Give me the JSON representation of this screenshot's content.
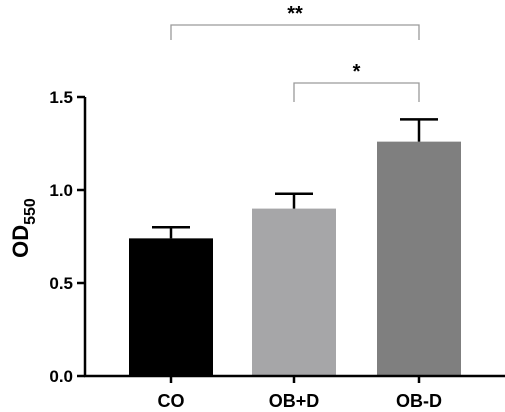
{
  "chart_data": {
    "type": "bar",
    "title": "",
    "xlabel": "",
    "ylabel": "OD",
    "ylabel_subscript": "550",
    "ylim": [
      0,
      1.5
    ],
    "yticks": [
      0.0,
      0.5,
      1.0,
      1.5
    ],
    "ytick_labels": [
      "0.0",
      "0.5",
      "1.0",
      "1.5"
    ],
    "categories": [
      "CO",
      "OB+D",
      "OB-D"
    ],
    "values": [
      0.74,
      0.9,
      1.26
    ],
    "errors": [
      0.06,
      0.08,
      0.12
    ],
    "bar_colors": [
      "#000000",
      "#a6a6a8",
      "#7f7f7f"
    ],
    "grid": false,
    "significance": [
      {
        "from": 0,
        "to": 2,
        "label": "**"
      },
      {
        "from": 1,
        "to": 2,
        "label": "*"
      }
    ]
  }
}
